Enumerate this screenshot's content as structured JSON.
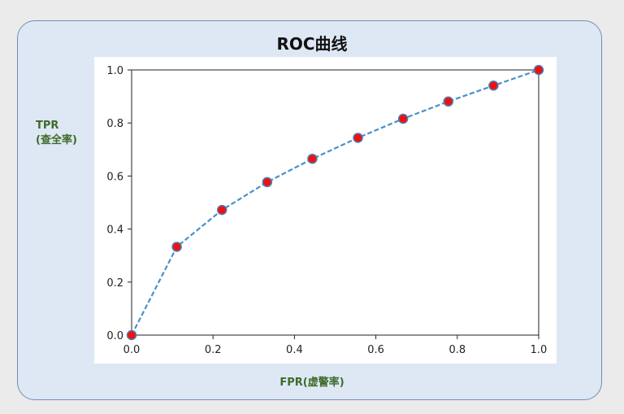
{
  "chart_data": {
    "type": "line",
    "title": "ROC曲线",
    "xlabel": "FPR(虚警率)",
    "ylabel_line1": "TPR",
    "ylabel_line2": "(查全率)",
    "x": [
      0.0,
      0.111,
      0.222,
      0.333,
      0.444,
      0.556,
      0.667,
      0.778,
      0.889,
      1.0
    ],
    "y": [
      0.0,
      0.333,
      0.472,
      0.577,
      0.665,
      0.744,
      0.816,
      0.881,
      0.941,
      1.0
    ],
    "xlim": [
      0.0,
      1.0
    ],
    "ylim": [
      0.0,
      1.0
    ],
    "xticks": [
      "0.0",
      "0.2",
      "0.4",
      "0.6",
      "0.8",
      "1.0"
    ],
    "yticks": [
      "0.0",
      "0.2",
      "0.4",
      "0.6",
      "0.8",
      "1.0"
    ],
    "grid": false,
    "line_color": "#4a90c8",
    "line_style": "dashed",
    "marker_fill": "#ee1111",
    "marker_edge": "#4a7fb5"
  }
}
